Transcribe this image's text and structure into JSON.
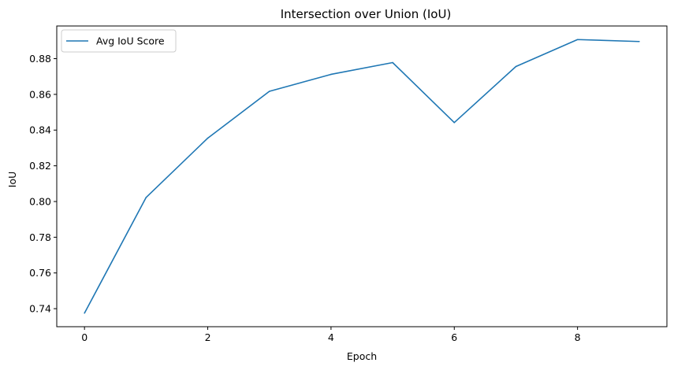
{
  "chart_data": {
    "type": "line",
    "title": "Intersection over Union (IoU)",
    "xlabel": "Epoch",
    "ylabel": "IoU",
    "x": [
      0,
      1,
      2,
      3,
      4,
      5,
      6,
      7,
      8,
      9
    ],
    "series": [
      {
        "name": "Avg IoU Score",
        "color": "#1f77b4",
        "values": [
          0.7375,
          0.8023,
          0.8355,
          0.8617,
          0.8712,
          0.8778,
          0.8442,
          0.8756,
          0.8907,
          0.8896
        ]
      }
    ],
    "xlim": [
      -0.45,
      9.45
    ],
    "ylim": [
      0.7299,
      0.8983
    ],
    "xticks": [
      0,
      2,
      4,
      6,
      8
    ],
    "yticks": [
      0.74,
      0.76,
      0.78,
      0.8,
      0.82,
      0.84,
      0.86,
      0.88
    ],
    "ytick_labels": [
      "0.74",
      "0.76",
      "0.78",
      "0.80",
      "0.82",
      "0.84",
      "0.86",
      "0.88"
    ],
    "legend_position": "top-left",
    "grid": false
  }
}
